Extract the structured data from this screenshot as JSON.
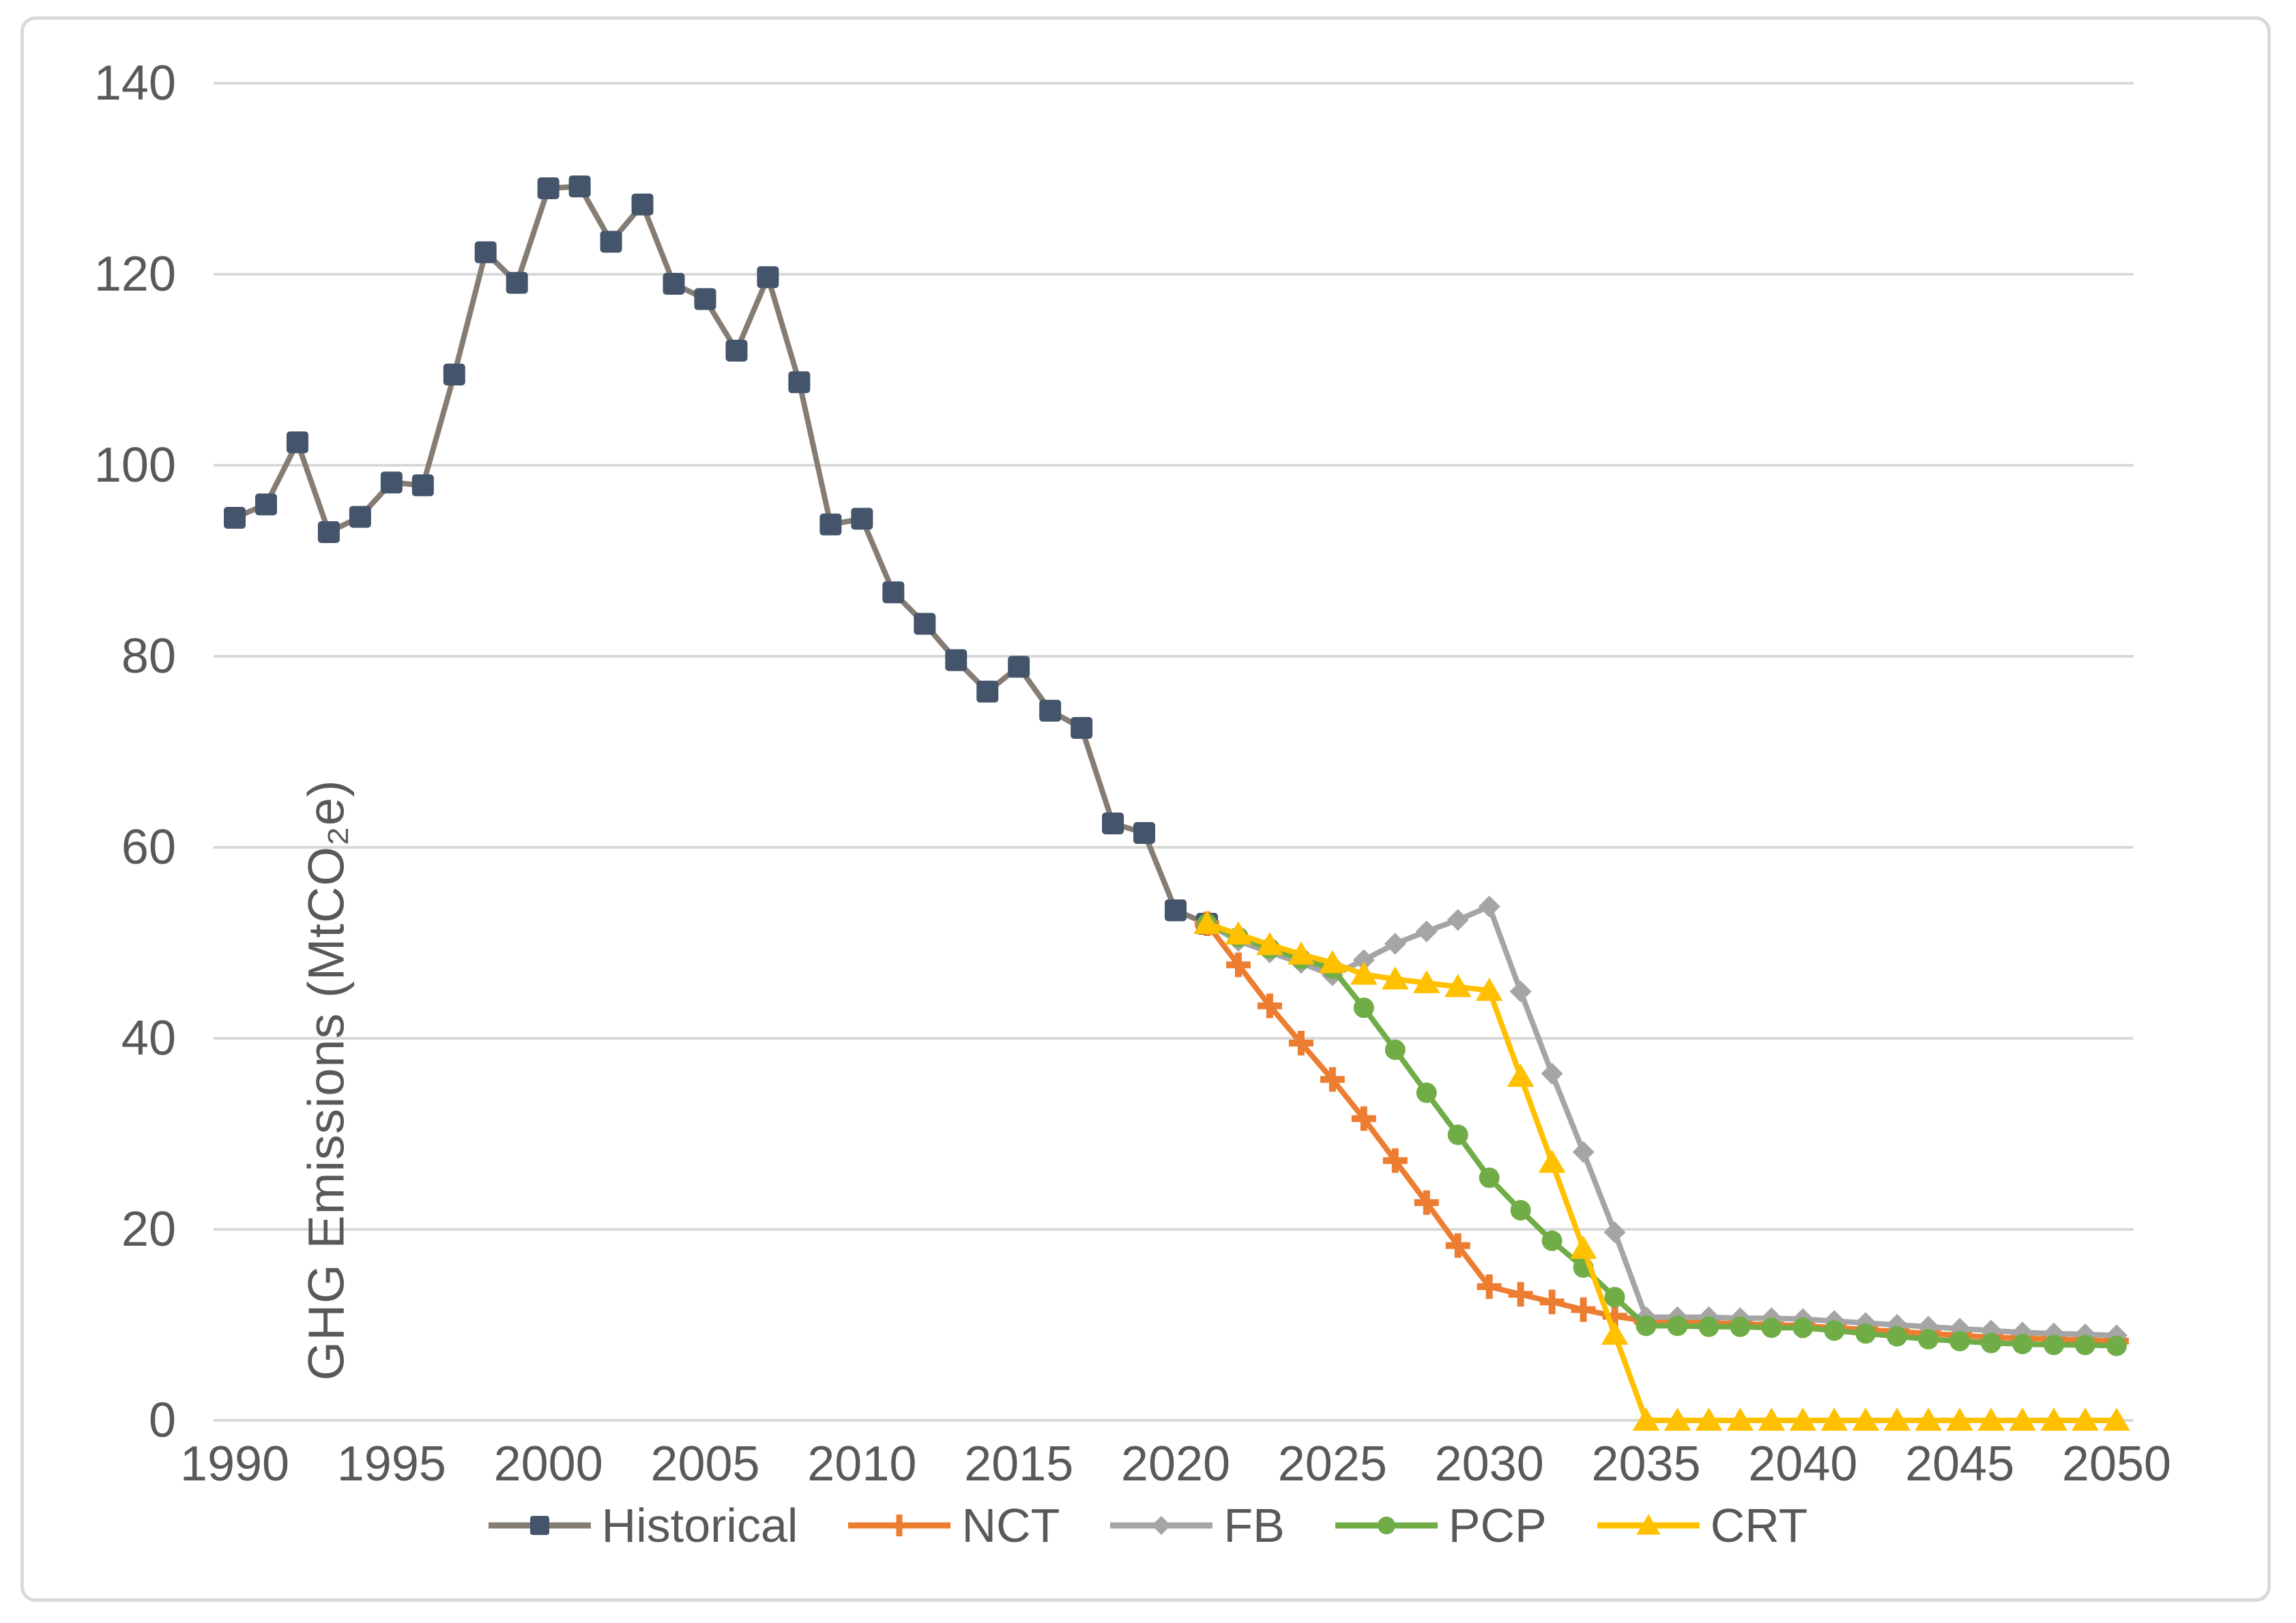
{
  "chart_data": {
    "type": "line",
    "title": "",
    "ylabel": "GHG Emissions (MtCO₂e)",
    "xlabel": "",
    "ylim": [
      0,
      140
    ],
    "xlim": [
      1989.3,
      2050.6
    ],
    "y_ticks": [
      0,
      20,
      40,
      60,
      80,
      100,
      120,
      140
    ],
    "x_ticks": [
      1990,
      1995,
      2000,
      2005,
      2010,
      2015,
      2020,
      2025,
      2030,
      2035,
      2040,
      2045,
      2050
    ],
    "grid": "horizontal",
    "legend_position": "bottom",
    "colors": {
      "historical_marker": "#44546A",
      "historical_line": "#857C74",
      "nct": "#ED7D31",
      "fb": "#A5A5A5",
      "pcp": "#70AD47",
      "crt": "#FFC000",
      "gridline": "#D9D9D9",
      "axis_text": "#595959",
      "chart_border": "#D9D9D9"
    },
    "series": [
      {
        "name": "Historical",
        "marker": "square",
        "marker_color": "#44546A",
        "line_color": "#857C74",
        "start_year": 1990,
        "end_year": 2021,
        "values": [
          94.5,
          95.9,
          102.4,
          93.0,
          94.6,
          98.2,
          97.9,
          109.5,
          122.3,
          119.1,
          129.0,
          129.2,
          123.4,
          127.3,
          119.0,
          117.4,
          112.0,
          119.7,
          108.7,
          93.8,
          94.4,
          86.7,
          83.4,
          79.6,
          76.3,
          78.9,
          74.3,
          72.5,
          62.5,
          61.5,
          53.4,
          52.0
        ]
      },
      {
        "name": "NCT",
        "marker": "plus",
        "marker_color": "#ED7D31",
        "line_color": "#ED7D31",
        "start_year": 2021,
        "end_year": 2050,
        "values": [
          52.0,
          47.7,
          43.4,
          39.5,
          35.7,
          31.6,
          27.2,
          22.8,
          18.3,
          14.0,
          13.2,
          12.4,
          11.6,
          10.9,
          10.4,
          10.3,
          10.2,
          10.1,
          10.0,
          9.9,
          9.7,
          9.5,
          9.3,
          9.1,
          8.9,
          8.7,
          8.6,
          8.5,
          8.4,
          8.3
        ]
      },
      {
        "name": "FB",
        "marker": "diamond",
        "marker_color": "#A5A5A5",
        "line_color": "#A5A5A5",
        "start_year": 2021,
        "end_year": 2050,
        "values": [
          52.0,
          50.2,
          49.0,
          47.9,
          46.6,
          48.2,
          49.9,
          51.2,
          52.4,
          53.8,
          44.9,
          36.3,
          28.1,
          19.7,
          10.8,
          10.8,
          10.8,
          10.7,
          10.7,
          10.6,
          10.4,
          10.2,
          10.0,
          9.8,
          9.6,
          9.4,
          9.2,
          9.1,
          9.0,
          8.9
        ]
      },
      {
        "name": "PCP",
        "marker": "circle",
        "marker_color": "#70AD47",
        "line_color": "#70AD47",
        "start_year": 2021,
        "end_year": 2050,
        "values": [
          52.0,
          50.6,
          49.4,
          48.3,
          47.3,
          43.2,
          38.8,
          34.3,
          29.9,
          25.4,
          22.0,
          18.8,
          16.0,
          12.9,
          9.9,
          9.9,
          9.8,
          9.8,
          9.7,
          9.7,
          9.4,
          9.1,
          8.8,
          8.5,
          8.3,
          8.1,
          8.0,
          7.9,
          7.9,
          7.8
        ]
      },
      {
        "name": "CRT",
        "marker": "triangle",
        "marker_color": "#FFC000",
        "line_color": "#FFC000",
        "start_year": 2021,
        "end_year": 2050,
        "values": [
          52.0,
          50.9,
          49.8,
          48.8,
          47.9,
          46.7,
          46.2,
          45.8,
          45.4,
          45.0,
          36.0,
          27.0,
          18.0,
          9.0,
          0.0,
          0.0,
          0.0,
          0.0,
          0.0,
          0.0,
          0.0,
          0.0,
          0.0,
          0.0,
          0.0,
          0.0,
          0.0,
          0.0,
          0.0,
          0.0
        ]
      }
    ]
  }
}
